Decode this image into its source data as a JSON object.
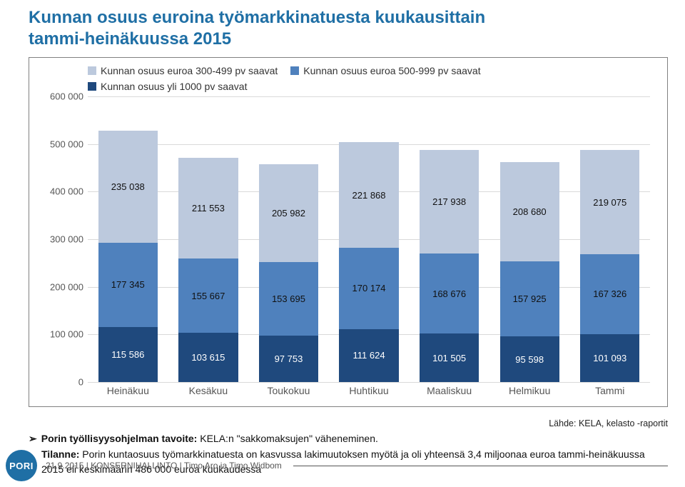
{
  "title_line1": "Kunnan osuus euroina työmarkkinatuesta kuukausittain",
  "title_line2": "tammi-heinäkuussa 2015",
  "legend": {
    "items": [
      {
        "label": "Kunnan osuus euroa 300-499 pv saavat",
        "color": "#bcc9dd"
      },
      {
        "label": "Kunnan osuus euroa 500-999 pv saavat",
        "color": "#4f81bd"
      },
      {
        "label": "Kunnan osuus yli 1000 pv saavat",
        "color": "#1f497d"
      }
    ]
  },
  "chart": {
    "type": "stacked-bar",
    "categories": [
      "Heinäkuu",
      "Kesäkuu",
      "Toukokuu",
      "Huhtikuu",
      "Maaliskuu",
      "Helmikuu",
      "Tammi"
    ],
    "series": [
      {
        "color": "#1f497d",
        "values": [
          115586,
          103615,
          97753,
          111624,
          101505,
          95598,
          101093
        ]
      },
      {
        "color": "#4f81bd",
        "values": [
          177345,
          155667,
          153695,
          170174,
          168676,
          157925,
          167326
        ]
      },
      {
        "color": "#bcc9dd",
        "values": [
          235038,
          211553,
          205982,
          221868,
          217938,
          208680,
          219075
        ]
      }
    ],
    "y": {
      "min": 0,
      "max": 600000,
      "step": 100000,
      "ticks": [
        "0",
        "100 000",
        "200 000",
        "300 000",
        "400 000",
        "500 000",
        "600 000"
      ]
    },
    "value_labels": {
      "top": [
        "235 038",
        "211 553",
        "205 982",
        "221 868",
        "217 938",
        "208 680",
        "219 075"
      ],
      "middle": [
        "177 345",
        "155 667",
        "153 695",
        "170 174",
        "168 676",
        "157 925",
        "167 326"
      ],
      "bottom": [
        "115 586",
        "103 615",
        "97 753",
        "111 624",
        "101 505",
        "95 598",
        "101 093"
      ]
    },
    "grid_color": "#d9d9d9",
    "border_color": "#808080",
    "label_fontsize": 13,
    "axis_fontsize": 13,
    "background": "#ffffff"
  },
  "source_text": "Lähde: KELA, kelasto -raportit",
  "bullet1_a": "Porin työllisyysohjelman tavoite:",
  "bullet1_b": " KELA:n \"sakkomaksujen\" väheneminen.",
  "bullet2_a": "Tilanne:",
  "bullet2_b": " Porin kuntaosuus työmarkkinatuesta on kasvussa lakimuutoksen myötä ja oli yhteensä 3,4 miljoonaa euroa tammi-heinäkuussa 2015 eli keskimäärin 486 000 euroa kuukaudessa",
  "footer_brand": "PORI",
  "footer_text": "21.9.2015 | KONSERNIHALLINTO | Timo Aro ja Timo Widbom"
}
